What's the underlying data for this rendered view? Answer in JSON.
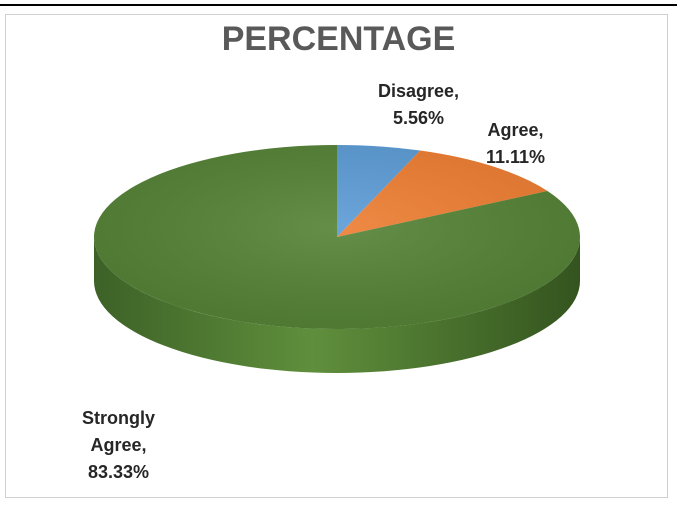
{
  "chart_data": {
    "type": "pie",
    "title": "PERCENTAGE",
    "slices": [
      {
        "label": "Disagree",
        "value": 5.56,
        "value_label": "5.56%",
        "color": "#5B9BD5"
      },
      {
        "label": "Agree",
        "value": 11.11,
        "value_label": "11.11%",
        "color": "#ED7D31"
      },
      {
        "label": "Strongly Agree",
        "value": 83.33,
        "value_label": "83.33%",
        "color": "#548235"
      }
    ],
    "style": "3d",
    "legend": "none",
    "data_labels": [
      {
        "line1": "Disagree,",
        "line2": "5.56%"
      },
      {
        "line1": "Agree,",
        "line2": "11.11%"
      },
      {
        "line1": "Strongly",
        "line2": "Agree,",
        "line3": "83.33%"
      }
    ]
  }
}
